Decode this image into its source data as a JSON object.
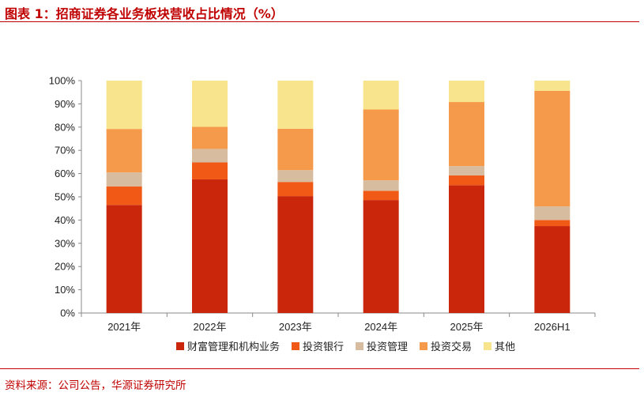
{
  "header": {
    "title": "图表 1：招商证券各业务板块营收占比情况（%）"
  },
  "footer": {
    "source": "资料来源：公司公告，华源证券研究所"
  },
  "colors": {
    "accent": "#c00000",
    "wealth": "#c9260c",
    "ib": "#f15a16",
    "am": "#d8bc9f",
    "trading": "#f59a4a",
    "other": "#f8e48c"
  },
  "chart_data": {
    "type": "bar",
    "stacked": true,
    "categories": [
      "2021年",
      "2022年",
      "2023年",
      "2024年",
      "2025年",
      "2026H1"
    ],
    "ylim": [
      0,
      100
    ],
    "yticks": [
      "0%",
      "10%",
      "20%",
      "30%",
      "40%",
      "50%",
      "60%",
      "70%",
      "80%",
      "90%",
      "100%"
    ],
    "legend_position": "bottom",
    "grid": false,
    "series": [
      {
        "name": "财富管理和机构业务",
        "color": "#c9260c",
        "values": [
          46.5,
          57.5,
          50.3,
          48.6,
          55.0,
          37.4
        ]
      },
      {
        "name": "投资银行",
        "color": "#f15a16",
        "values": [
          8.0,
          7.3,
          6.1,
          4.0,
          4.2,
          2.6
        ]
      },
      {
        "name": "投资管理",
        "color": "#d8bc9f",
        "values": [
          6.0,
          5.8,
          5.1,
          4.5,
          4.0,
          5.9
        ]
      },
      {
        "name": "投资交易",
        "color": "#f59a4a",
        "values": [
          18.7,
          9.5,
          17.8,
          30.5,
          27.6,
          49.7
        ]
      },
      {
        "name": "其他",
        "color": "#f8e48c",
        "values": [
          20.8,
          19.9,
          20.7,
          12.4,
          9.2,
          4.4
        ]
      }
    ]
  }
}
